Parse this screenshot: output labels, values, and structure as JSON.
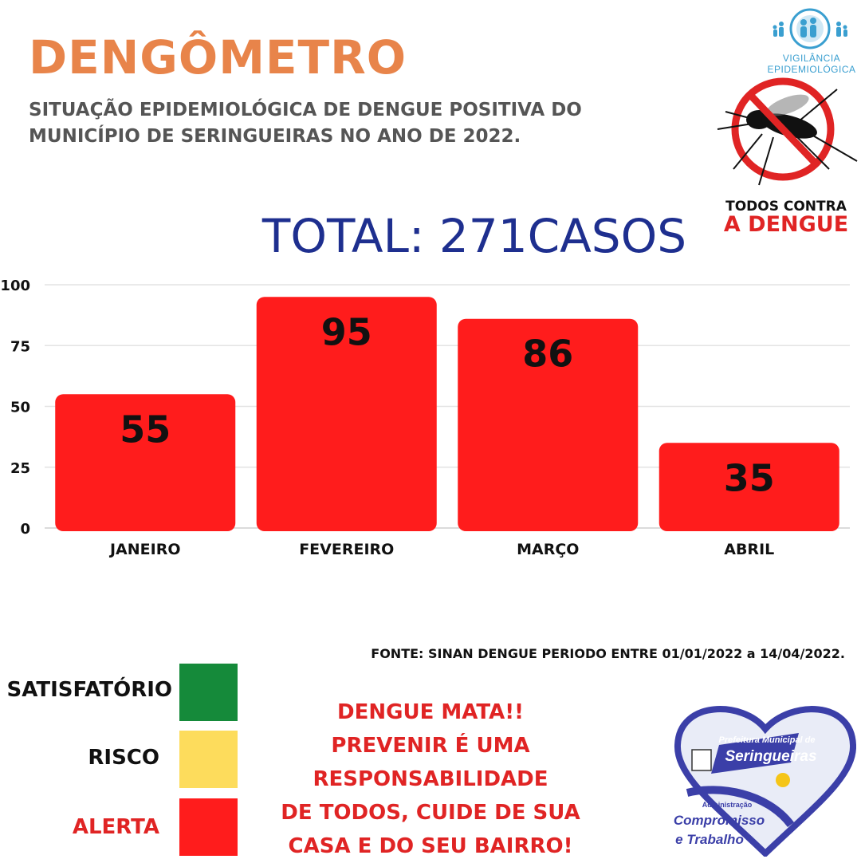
{
  "header": {
    "title": "DENGÔMETRO",
    "subtitle": "SITUAÇÃO EPIDEMIOLÓGICA DE DENGUE POSITIVA DO MUNICÍPIO DE SERINGUEIRAS NO ANO DE 2022."
  },
  "logos": {
    "vigilancia_line1": "VIGILÂNCIA",
    "vigilancia_line2": "EPIDEMIOLÓGICA",
    "campaign_line1": "TODOS CONTRA",
    "campaign_line2": "A DENGUE",
    "prefeitura_line1": "Prefeitura Municipal de",
    "prefeitura_line2": "Seringueiras",
    "prefeitura_line3": "Administração",
    "prefeitura_line4": "Compromisso",
    "prefeitura_line5": "e Trabalho"
  },
  "total_label": "TOTAL: 271CASOS",
  "chart_data": {
    "type": "bar",
    "title": "TOTAL: 271CASOS",
    "categories": [
      "JANEIRO",
      "FEVEREIRO",
      "MARÇO",
      "ABRIL"
    ],
    "values": [
      55,
      95,
      86,
      35
    ],
    "ylim": [
      0,
      100
    ],
    "yticks": [
      0,
      25,
      50,
      75,
      100
    ],
    "grid": true,
    "bar_color": "#ff1c1c",
    "data_labels": true
  },
  "source": "FONTE: SINAN DENGUE PERIODO ENTRE 01/01/2022 a 14/04/2022.",
  "legend": [
    {
      "label": "SATISFATÓRIO",
      "color": "#158a3a",
      "label_color": "#111111"
    },
    {
      "label": "RISCO",
      "color": "#fddc5c",
      "label_color": "#111111"
    },
    {
      "label": "ALERTA",
      "color": "#ff1c1c",
      "label_color": "#e02424"
    }
  ],
  "message": [
    "DENGUE MATA!!",
    "PREVENIR É UMA",
    "RESPONSABILIDADE",
    "DE TODOS, CUIDE DE SUA",
    "CASA E DO SEU BAIRRO!"
  ],
  "colors": {
    "title": "#e8844a",
    "total": "#1e2f8f",
    "alert_text": "#e02424",
    "subtitle": "#555555"
  }
}
